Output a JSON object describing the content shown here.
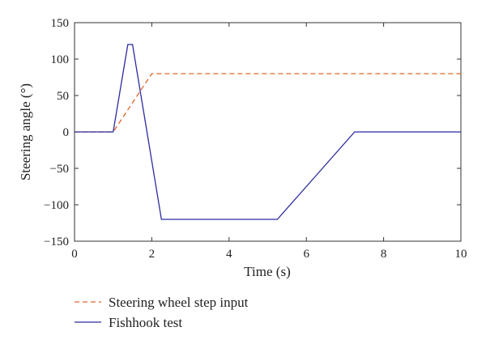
{
  "chart_data": {
    "type": "line",
    "xlabel": "Time (s)",
    "ylabel": "Steering angle (°)",
    "xlim": [
      0,
      10
    ],
    "ylim": [
      -150,
      150
    ],
    "xticks": [
      0,
      2,
      4,
      6,
      8,
      10
    ],
    "yticks": [
      150,
      100,
      50,
      0,
      -50,
      -100,
      -150
    ],
    "grid": false,
    "legend_position": "bottom-left, below plot",
    "series": [
      {
        "name": "Steering wheel step input",
        "style": "dashed",
        "color": "#e0632a",
        "x": [
          0,
          1.0,
          2.0,
          10
        ],
        "y": [
          0,
          0,
          80,
          80
        ]
      },
      {
        "name": "Fishhook test",
        "style": "solid",
        "color": "#2b2b9e",
        "x": [
          0,
          1.0,
          1.38,
          1.5,
          2.25,
          5.25,
          7.25,
          10
        ],
        "y": [
          0,
          0,
          120,
          120,
          -120,
          -120,
          0,
          0
        ]
      }
    ]
  }
}
